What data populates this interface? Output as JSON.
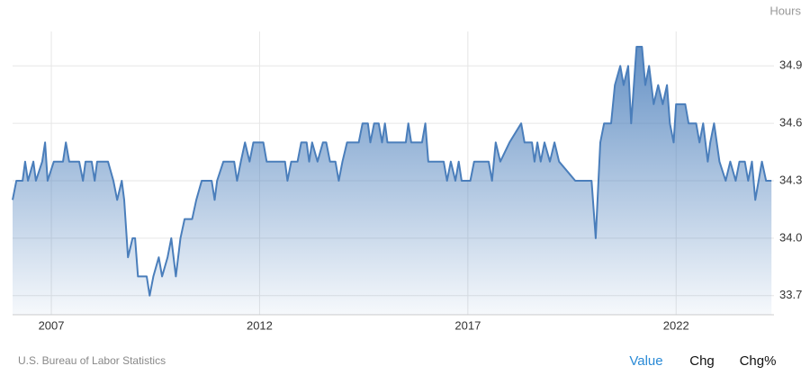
{
  "chart_data": {
    "type": "area",
    "y_axis_label": "Hours",
    "source": "U.S. Bureau of Labor Statistics",
    "buttons": [
      "Value",
      "Chg",
      "Chg%"
    ],
    "color": "#4a7ebb",
    "grid": true,
    "xlim": [
      2006.07,
      2024.35
    ],
    "xticks": [
      2007,
      2012,
      2017,
      2022
    ],
    "ylim": [
      33.6,
      35.08
    ],
    "yticks": [
      33.7,
      {
        "value": 34,
        "label": "34.0"
      },
      34.3,
      34.6,
      34.9
    ],
    "x": [
      2006.07,
      2006.16,
      2006.31,
      2006.37,
      2006.44,
      2006.57,
      2006.63,
      2006.78,
      2006.85,
      2006.91,
      2007.06,
      2007.28,
      2007.35,
      2007.43,
      2007.67,
      2007.76,
      2007.82,
      2007.97,
      2008.04,
      2008.1,
      2008.36,
      2008.49,
      2008.58,
      2008.69,
      2008.75,
      2008.84,
      2008.95,
      2009.01,
      2009.08,
      2009.29,
      2009.36,
      2009.45,
      2009.58,
      2009.66,
      2009.79,
      2009.88,
      2009.99,
      2010.1,
      2010.2,
      2010.38,
      2010.48,
      2010.61,
      2010.85,
      2010.92,
      2010.98,
      2011.13,
      2011.39,
      2011.46,
      2011.55,
      2011.65,
      2011.76,
      2011.85,
      2012.09,
      2012.17,
      2012.61,
      2012.67,
      2012.76,
      2012.91,
      2013.0,
      2013.13,
      2013.19,
      2013.26,
      2013.39,
      2013.52,
      2013.6,
      2013.69,
      2013.82,
      2013.9,
      2013.99,
      2014.1,
      2014.38,
      2014.47,
      2014.6,
      2014.66,
      2014.75,
      2014.86,
      2014.94,
      2015.01,
      2015.07,
      2015.51,
      2015.57,
      2015.64,
      2015.9,
      2015.98,
      2016.05,
      2016.42,
      2016.5,
      2016.59,
      2016.7,
      2016.78,
      2016.85,
      2017.06,
      2017.15,
      2017.5,
      2017.58,
      2017.67,
      2017.78,
      2018.0,
      2018.28,
      2018.36,
      2018.54,
      2018.6,
      2018.67,
      2018.75,
      2018.84,
      2018.97,
      2019.08,
      2019.19,
      2019.58,
      2019.97,
      2020.07,
      2020.18,
      2020.27,
      2020.44,
      2020.53,
      2020.66,
      2020.74,
      2020.85,
      2020.92,
      2021.05,
      2021.18,
      2021.26,
      2021.35,
      2021.46,
      2021.57,
      2021.68,
      2021.78,
      2021.85,
      2021.94,
      2022.0,
      2022.22,
      2022.3,
      2022.48,
      2022.56,
      2022.65,
      2022.76,
      2022.82,
      2022.91,
      2023.04,
      2023.19,
      2023.3,
      2023.43,
      2023.52,
      2023.65,
      2023.73,
      2023.82,
      2023.9,
      2024.06,
      2024.16,
      2024.29
    ],
    "values": [
      34.2,
      34.3,
      34.3,
      34.4,
      34.3,
      34.4,
      34.3,
      34.4,
      34.5,
      34.3,
      34.4,
      34.4,
      34.5,
      34.4,
      34.4,
      34.3,
      34.4,
      34.4,
      34.3,
      34.4,
      34.4,
      34.3,
      34.2,
      34.3,
      34.2,
      33.9,
      34.0,
      34.0,
      33.8,
      33.8,
      33.7,
      33.8,
      33.9,
      33.8,
      33.9,
      34.0,
      33.8,
      34.0,
      34.1,
      34.1,
      34.2,
      34.3,
      34.3,
      34.2,
      34.3,
      34.4,
      34.4,
      34.3,
      34.4,
      34.5,
      34.4,
      34.5,
      34.5,
      34.4,
      34.4,
      34.3,
      34.4,
      34.4,
      34.5,
      34.5,
      34.4,
      34.5,
      34.4,
      34.5,
      34.5,
      34.4,
      34.4,
      34.3,
      34.4,
      34.5,
      34.5,
      34.6,
      34.6,
      34.5,
      34.6,
      34.6,
      34.5,
      34.6,
      34.5,
      34.5,
      34.6,
      34.5,
      34.5,
      34.6,
      34.4,
      34.4,
      34.3,
      34.4,
      34.3,
      34.4,
      34.3,
      34.3,
      34.4,
      34.4,
      34.3,
      34.5,
      34.4,
      34.5,
      34.6,
      34.5,
      34.5,
      34.4,
      34.5,
      34.4,
      34.5,
      34.4,
      34.5,
      34.4,
      34.3,
      34.3,
      34.0,
      34.5,
      34.6,
      34.6,
      34.8,
      34.9,
      34.8,
      34.9,
      34.6,
      35.0,
      35.0,
      34.8,
      34.9,
      34.7,
      34.8,
      34.7,
      34.8,
      34.6,
      34.5,
      34.7,
      34.7,
      34.6,
      34.6,
      34.5,
      34.6,
      34.4,
      34.5,
      34.6,
      34.4,
      34.3,
      34.4,
      34.3,
      34.4,
      34.4,
      34.3,
      34.4,
      34.2,
      34.4,
      34.3,
      34.3
    ]
  }
}
